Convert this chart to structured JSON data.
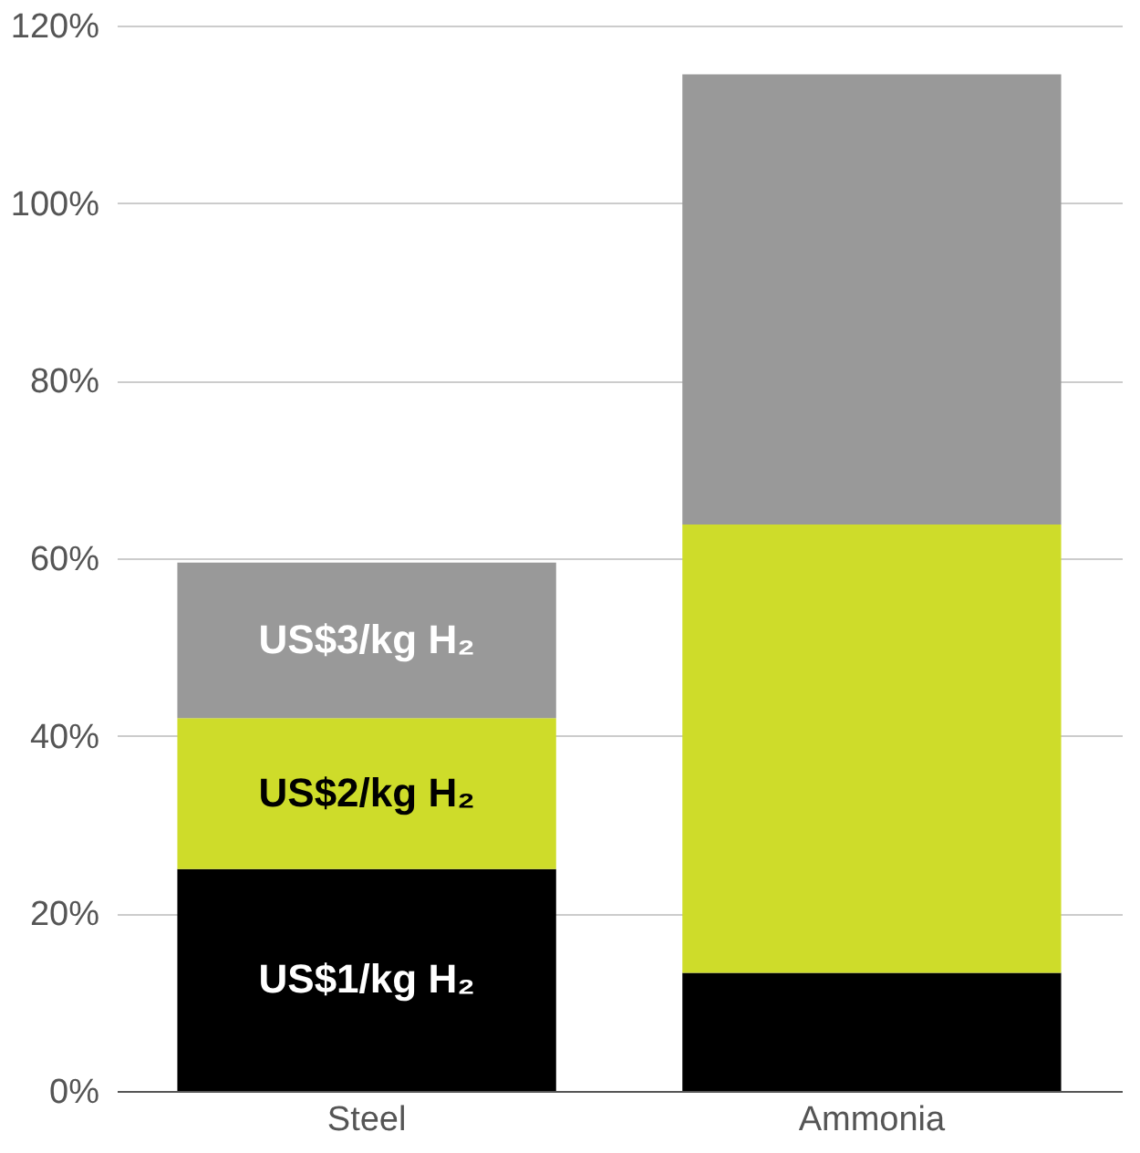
{
  "chart_data": {
    "type": "bar",
    "stacked": true,
    "categories": [
      "Steel",
      "Ammonia"
    ],
    "series": [
      {
        "name": "US$1/kg H₂",
        "color": "#000000",
        "values": [
          25,
          13.3
        ]
      },
      {
        "name": "US$2/kg H₂",
        "color": "#cedc2a",
        "values": [
          17,
          50.5
        ]
      },
      {
        "name": "US$3/kg H₂",
        "color": "#999999",
        "values": [
          17.5,
          50.7
        ]
      }
    ],
    "ylim": [
      0,
      120
    ],
    "yticks": [
      {
        "value": 0,
        "label": "0%"
      },
      {
        "value": 20,
        "label": "20%"
      },
      {
        "value": 40,
        "label": "40%"
      },
      {
        "value": 60,
        "label": "60%"
      },
      {
        "value": 80,
        "label": "80%"
      },
      {
        "value": 100,
        "label": "100%"
      },
      {
        "value": 120,
        "label": "120%"
      }
    ],
    "grid": "y"
  }
}
